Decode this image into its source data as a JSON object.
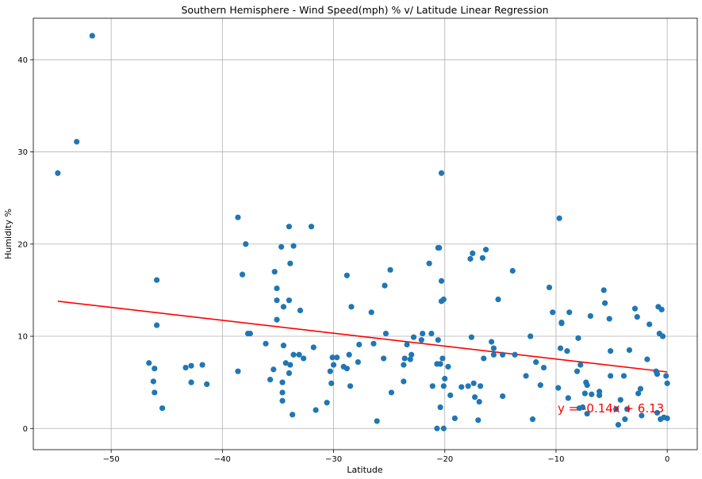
{
  "chart_data": {
    "type": "scatter",
    "title": "Southern Hemisphere - Wind Speed(mph) % v/ Latitude Linear Regression",
    "xlabel": "Latitude",
    "ylabel": "Humidity %",
    "xlim": [
      -57,
      2.7
    ],
    "ylim": [
      -2.3,
      44.5
    ],
    "xticks": [
      -50,
      -40,
      -30,
      -20,
      -10,
      0
    ],
    "yticks": [
      0,
      10,
      20,
      30,
      40
    ],
    "grid": true,
    "colors": {
      "points": "#1f77b4",
      "regression": "#ff0000",
      "grid": "#b0b0b0"
    },
    "regression": {
      "slope": -0.14,
      "intercept": 6.13,
      "x_range": [
        -54.8,
        0
      ],
      "equation_label": "y = -0.14x + 6.13"
    },
    "points": [
      [
        -54.8,
        27.7
      ],
      [
        -53.1,
        31.1
      ],
      [
        -51.7,
        42.6
      ],
      [
        -46.6,
        7.1
      ],
      [
        -46.2,
        5.1
      ],
      [
        -46.1,
        6.5
      ],
      [
        -46.1,
        3.9
      ],
      [
        -45.9,
        16.1
      ],
      [
        -45.9,
        11.2
      ],
      [
        -45.4,
        2.2
      ],
      [
        -43.3,
        6.6
      ],
      [
        -42.8,
        6.8
      ],
      [
        -42.8,
        5.0
      ],
      [
        -41.8,
        6.9
      ],
      [
        -41.4,
        4.8
      ],
      [
        -38.6,
        22.9
      ],
      [
        -38.6,
        6.2
      ],
      [
        -38.2,
        16.7
      ],
      [
        -37.9,
        20.0
      ],
      [
        -37.7,
        10.3
      ],
      [
        -37.5,
        10.3
      ],
      [
        -36.1,
        9.2
      ],
      [
        -35.7,
        5.3
      ],
      [
        -35.4,
        6.4
      ],
      [
        -35.3,
        17.0
      ],
      [
        -35.1,
        15.2
      ],
      [
        -35.1,
        13.9
      ],
      [
        -35.1,
        11.8
      ],
      [
        -34.7,
        19.7
      ],
      [
        -34.6,
        3.9
      ],
      [
        -34.6,
        3.0
      ],
      [
        -34.6,
        5.0
      ],
      [
        -34.5,
        13.2
      ],
      [
        -34.5,
        9.0
      ],
      [
        -34.3,
        7.1
      ],
      [
        -34.0,
        21.9
      ],
      [
        -34.0,
        13.9
      ],
      [
        -34.0,
        6.0
      ],
      [
        -33.9,
        17.9
      ],
      [
        -33.9,
        6.9
      ],
      [
        -33.7,
        1.5
      ],
      [
        -33.6,
        19.8
      ],
      [
        -33.6,
        8.0
      ],
      [
        -33.1,
        8.0
      ],
      [
        -33.0,
        12.8
      ],
      [
        -32.7,
        7.6
      ],
      [
        -32.0,
        21.9
      ],
      [
        -31.8,
        8.8
      ],
      [
        -31.6,
        2.0
      ],
      [
        -30.6,
        2.8
      ],
      [
        -30.3,
        6.2
      ],
      [
        -30.2,
        4.9
      ],
      [
        -30.1,
        7.7
      ],
      [
        -30.0,
        6.9
      ],
      [
        -29.7,
        7.7
      ],
      [
        -29.1,
        6.7
      ],
      [
        -28.8,
        16.6
      ],
      [
        -28.8,
        6.5
      ],
      [
        -28.6,
        8.0
      ],
      [
        -28.5,
        4.6
      ],
      [
        -28.4,
        13.2
      ],
      [
        -27.8,
        7.2
      ],
      [
        -27.7,
        9.1
      ],
      [
        -26.6,
        12.6
      ],
      [
        -26.4,
        9.2
      ],
      [
        -26.1,
        0.8
      ],
      [
        -25.5,
        7.6
      ],
      [
        -25.4,
        15.5
      ],
      [
        -25.3,
        10.3
      ],
      [
        -24.9,
        17.2
      ],
      [
        -24.8,
        3.9
      ],
      [
        -23.7,
        5.1
      ],
      [
        -23.7,
        6.9
      ],
      [
        -23.6,
        7.6
      ],
      [
        -23.4,
        9.1
      ],
      [
        -23.1,
        7.5
      ],
      [
        -23.0,
        8.0
      ],
      [
        -22.8,
        9.9
      ],
      [
        -22.1,
        9.6
      ],
      [
        -22.0,
        10.3
      ],
      [
        -21.4,
        17.9
      ],
      [
        -21.2,
        10.3
      ],
      [
        -21.1,
        4.6
      ],
      [
        -20.7,
        0.0
      ],
      [
        -20.7,
        7.0
      ],
      [
        -20.6,
        19.6
      ],
      [
        -20.6,
        9.6
      ],
      [
        -20.5,
        19.6
      ],
      [
        -20.4,
        2.3
      ],
      [
        -20.4,
        7.0
      ],
      [
        -20.3,
        27.7
      ],
      [
        -20.3,
        16.0
      ],
      [
        -20.3,
        13.8
      ],
      [
        -20.2,
        7.6
      ],
      [
        -20.1,
        14.0
      ],
      [
        -20.1,
        4.6
      ],
      [
        -20.0,
        5.4
      ],
      [
        -20.1,
        0.0
      ],
      [
        -19.7,
        6.7
      ],
      [
        -19.5,
        3.6
      ],
      [
        -19.1,
        1.1
      ],
      [
        -18.5,
        4.5
      ],
      [
        -17.9,
        4.6
      ],
      [
        -17.7,
        18.4
      ],
      [
        -17.6,
        9.9
      ],
      [
        -17.5,
        19.0
      ],
      [
        -17.4,
        4.9
      ],
      [
        -17.3,
        3.4
      ],
      [
        -17.0,
        0.9
      ],
      [
        -16.9,
        2.9
      ],
      [
        -16.8,
        4.6
      ],
      [
        -16.6,
        18.5
      ],
      [
        -16.5,
        7.6
      ],
      [
        -16.3,
        19.4
      ],
      [
        -15.8,
        9.4
      ],
      [
        -15.6,
        8.7
      ],
      [
        -15.6,
        8.0
      ],
      [
        -15.2,
        14.0
      ],
      [
        -14.8,
        3.5
      ],
      [
        -14.8,
        8.0
      ],
      [
        -13.9,
        17.1
      ],
      [
        -13.7,
        8.0
      ],
      [
        -12.7,
        5.7
      ],
      [
        -12.3,
        10.0
      ],
      [
        -12.1,
        1.0
      ],
      [
        -11.8,
        7.2
      ],
      [
        -11.4,
        4.7
      ],
      [
        -11.1,
        6.6
      ],
      [
        -10.6,
        15.3
      ],
      [
        -10.3,
        12.6
      ],
      [
        -9.8,
        4.4
      ],
      [
        -9.7,
        22.8
      ],
      [
        -9.6,
        8.7
      ],
      [
        -9.5,
        11.5
      ],
      [
        -9.5,
        11.4
      ],
      [
        -9.0,
        8.4
      ],
      [
        -8.8,
        12.6
      ],
      [
        -8.9,
        3.3
      ],
      [
        -8.1,
        6.2
      ],
      [
        -8.0,
        9.8
      ],
      [
        -7.9,
        2.2
      ],
      [
        -7.8,
        6.9
      ],
      [
        -7.6,
        2.3
      ],
      [
        -7.4,
        3.8
      ],
      [
        -7.3,
        5.0
      ],
      [
        -7.2,
        4.7
      ],
      [
        -7.2,
        1.6
      ],
      [
        -6.9,
        12.2
      ],
      [
        -6.8,
        3.7
      ],
      [
        -6.1,
        3.6
      ],
      [
        -6.1,
        4.0
      ],
      [
        -5.7,
        15.0
      ],
      [
        -5.6,
        13.6
      ],
      [
        -5.2,
        11.9
      ],
      [
        -5.1,
        8.4
      ],
      [
        -5.1,
        5.7
      ],
      [
        -4.6,
        2.1
      ],
      [
        -4.4,
        0.4
      ],
      [
        -4.2,
        3.1
      ],
      [
        -3.9,
        5.7
      ],
      [
        -3.8,
        1.0
      ],
      [
        -3.6,
        2.1
      ],
      [
        -3.4,
        8.5
      ],
      [
        -2.9,
        13.0
      ],
      [
        -2.7,
        12.1
      ],
      [
        -2.6,
        3.8
      ],
      [
        -2.4,
        4.3
      ],
      [
        -2.3,
        1.4
      ],
      [
        -1.8,
        7.5
      ],
      [
        -1.6,
        11.3
      ],
      [
        -1.0,
        6.2
      ],
      [
        -0.9,
        1.7
      ],
      [
        -0.9,
        5.9
      ],
      [
        -0.8,
        13.2
      ],
      [
        -0.7,
        10.3
      ],
      [
        -0.6,
        1.0
      ],
      [
        -0.5,
        12.9
      ],
      [
        -0.4,
        10.0
      ],
      [
        -0.3,
        1.2
      ],
      [
        0.0,
        1.1
      ],
      [
        -0.1,
        5.7
      ],
      [
        0.0,
        4.9
      ]
    ]
  }
}
